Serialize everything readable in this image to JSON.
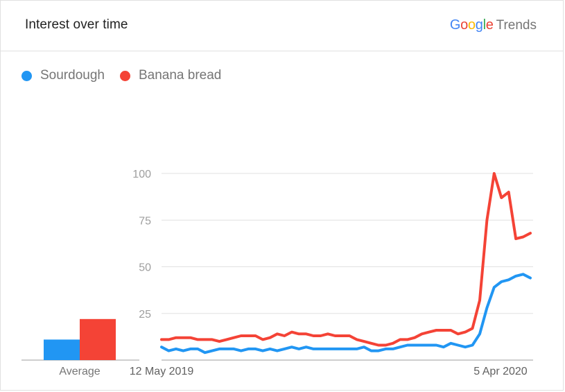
{
  "header": {
    "title": "Interest over time",
    "brand_letters": [
      {
        "ch": "G",
        "color": "#4285F4"
      },
      {
        "ch": "o",
        "color": "#EA4335"
      },
      {
        "ch": "o",
        "color": "#FBBC05"
      },
      {
        "ch": "g",
        "color": "#4285F4"
      },
      {
        "ch": "l",
        "color": "#34A853"
      },
      {
        "ch": "e",
        "color": "#EA4335"
      }
    ],
    "brand_product": "Trends"
  },
  "colors": {
    "sourdough": "#2196F3",
    "banana_bread": "#F44336",
    "grid": "#e0e0e0",
    "axis": "#9e9e9e"
  },
  "chart_data": {
    "type": "line",
    "title": "Interest over time",
    "ylim": [
      0,
      100
    ],
    "y_ticks": [
      25,
      50,
      75,
      100
    ],
    "x_tick_labels": [
      "12 May 2019",
      "5 Apr 2020"
    ],
    "x_start": "2019-05-12",
    "x_end": "2020-05-03",
    "x_interval": "weekly",
    "grid": true,
    "legend_position": "top-left",
    "average_label": "Average",
    "averages": [
      {
        "name": "Sourdough",
        "value": 11
      },
      {
        "name": "Banana bread",
        "value": 22
      }
    ],
    "series": [
      {
        "name": "Sourdough",
        "values": [
          7,
          5,
          6,
          5,
          6,
          6,
          4,
          5,
          6,
          6,
          6,
          5,
          6,
          6,
          5,
          6,
          5,
          6,
          7,
          6,
          7,
          6,
          6,
          6,
          6,
          6,
          6,
          6,
          7,
          5,
          5,
          6,
          6,
          7,
          8,
          8,
          8,
          8,
          8,
          7,
          9,
          8,
          7,
          8,
          14,
          28,
          39,
          42,
          43,
          45,
          46,
          44
        ]
      },
      {
        "name": "Banana bread",
        "values": [
          11,
          11,
          12,
          12,
          12,
          11,
          11,
          11,
          10,
          11,
          12,
          13,
          13,
          13,
          11,
          12,
          14,
          13,
          15,
          14,
          14,
          13,
          13,
          14,
          13,
          13,
          13,
          11,
          10,
          9,
          8,
          8,
          9,
          11,
          11,
          12,
          14,
          15,
          16,
          16,
          16,
          14,
          15,
          17,
          32,
          75,
          100,
          87,
          90,
          65,
          66,
          68
        ]
      }
    ]
  }
}
